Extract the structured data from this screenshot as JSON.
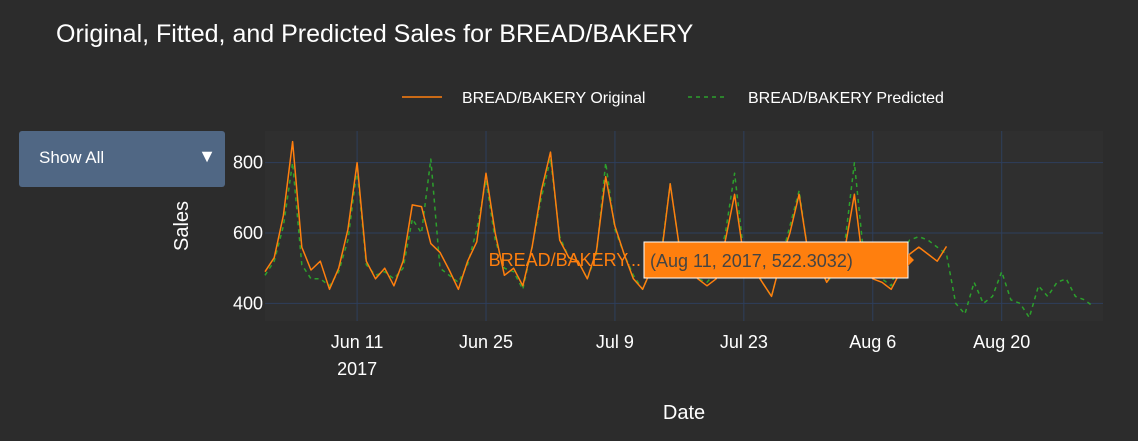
{
  "title": "Original, Fitted, and Predicted Sales for BREAD/BAKERY",
  "dropdown": {
    "label": "Show All",
    "arrow": "▼"
  },
  "colors": {
    "background": "#2c2c2c",
    "plot_background": "#2f2f2f",
    "grid": "#2e3f5c",
    "original": "#ff7f0e",
    "predicted": "#2ca02c",
    "dropdown": "#506784"
  },
  "hover": {
    "name": "BREAD/BAKERY...",
    "text": "(Aug 11, 2017, 522.3032)"
  },
  "chart_data": {
    "type": "line",
    "xlabel": "Date",
    "ylabel": "Sales",
    "xlim": [
      "2017-06-01",
      "2017-08-31"
    ],
    "ylim": [
      350,
      890
    ],
    "x_ticks": [
      {
        "date": "2017-06-11",
        "label": "Jun 11",
        "sublabel": "2017"
      },
      {
        "date": "2017-06-25",
        "label": "Jun 25"
      },
      {
        "date": "2017-07-09",
        "label": "Jul 9"
      },
      {
        "date": "2017-07-23",
        "label": "Jul 23"
      },
      {
        "date": "2017-08-06",
        "label": "Aug 6"
      },
      {
        "date": "2017-08-20",
        "label": "Aug 20"
      }
    ],
    "y_ticks": [
      400,
      600,
      800
    ],
    "grid": true,
    "legend": {
      "placement": "top-center",
      "orientation": "horizontal"
    },
    "series": [
      {
        "name": "BREAD/BAKERY Original",
        "style": "solid",
        "start_date": "2017-06-01",
        "values": [
          490,
          530,
          650,
          860,
          560,
          495,
          520,
          440,
          500,
          610,
          800,
          520,
          470,
          500,
          450,
          520,
          680,
          675,
          570,
          545,
          495,
          440,
          520,
          575,
          770,
          600,
          480,
          500,
          450,
          560,
          720,
          830,
          580,
          530,
          520,
          470,
          550,
          760,
          620,
          540,
          470,
          440,
          500,
          530,
          740,
          560,
          500,
          470,
          450,
          470,
          580,
          710,
          530,
          500,
          460,
          420,
          520,
          600,
          710,
          540,
          520,
          460,
          500,
          560,
          710,
          500,
          470,
          460,
          440,
          490,
          540,
          560,
          540,
          520,
          562
        ]
      },
      {
        "name": "BREAD/BAKERY Predicted",
        "style": "dashed",
        "start_date": "2017-06-01",
        "values": [
          480,
          520,
          620,
          800,
          510,
          470,
          470,
          450,
          490,
          580,
          780,
          510,
          480,
          490,
          470,
          500,
          640,
          600,
          810,
          500,
          480,
          460,
          510,
          610,
          750,
          580,
          500,
          490,
          440,
          560,
          700,
          810,
          590,
          530,
          520,
          470,
          540,
          800,
          610,
          540,
          480,
          440,
          500,
          540,
          740,
          560,
          500,
          470,
          460,
          490,
          600,
          770,
          540,
          510,
          460,
          420,
          520,
          620,
          720,
          540,
          520,
          460,
          490,
          580,
          800,
          540,
          500,
          470,
          450,
          540,
          580,
          590,
          580,
          560,
          540,
          400,
          370,
          460,
          400,
          420,
          490,
          410,
          400,
          360,
          450,
          420,
          460,
          470,
          420,
          410,
          390
        ]
      }
    ]
  }
}
